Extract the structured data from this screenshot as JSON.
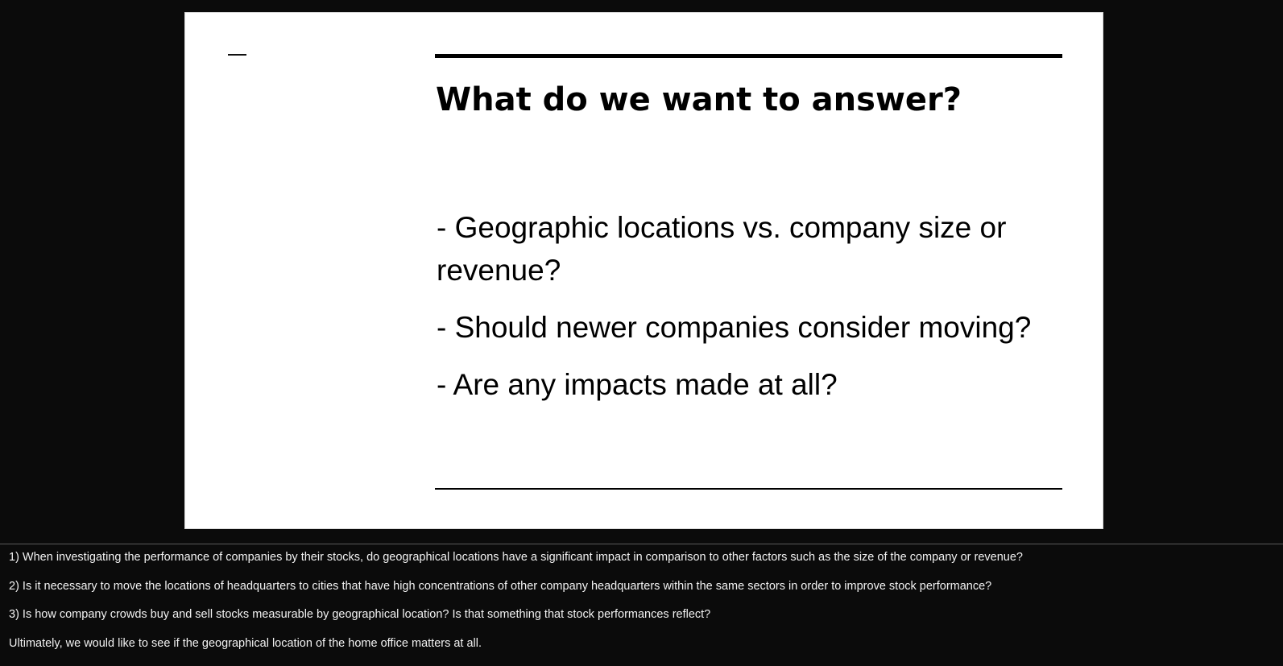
{
  "slide": {
    "title": "What do we want to answer?",
    "bullets": [
      "- Geographic locations vs. company size or revenue?",
      "- Should newer companies consider moving?",
      "- Are any impacts made at all?"
    ]
  },
  "notes": {
    "lines": [
      "1) When investigating the performance of companies by their stocks, do geographical locations have a significant impact in comparison to other factors such as the size of the company or revenue?",
      "2) Is it necessary to move the locations of headquarters to cities that have high concentrations of other company headquarters within the same sectors in order to improve stock performance?",
      "3) Is how company crowds buy and sell stocks measurable by geographical location?  Is that something that stock performances reflect?",
      "Ultimately, we would like to see if the geographical location of the home office matters at all."
    ]
  },
  "colors": {
    "background": "#0b0b0b",
    "slide": "#ffffff",
    "text_on_slide": "#000000",
    "notes_text": "#f2f2f2"
  }
}
